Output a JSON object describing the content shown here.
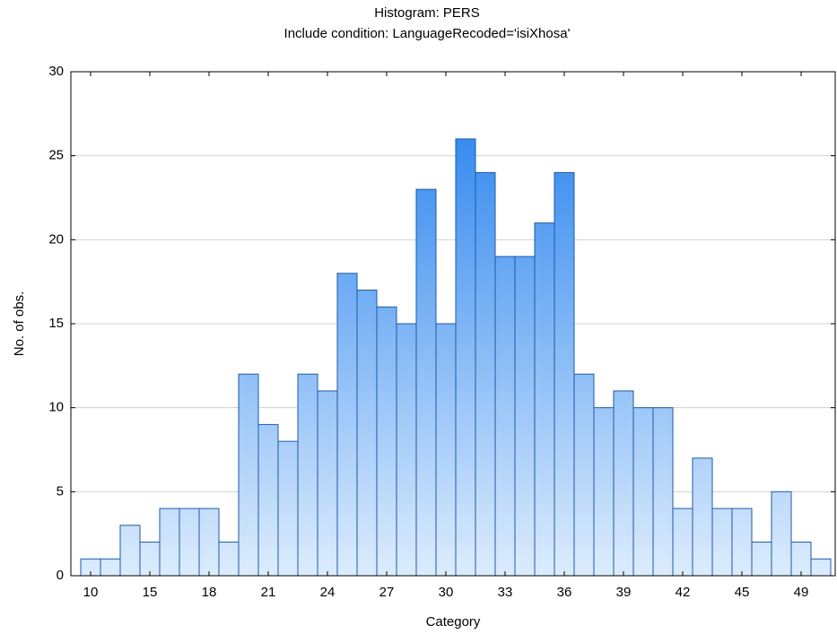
{
  "chart_data": {
    "type": "bar",
    "title": "Histogram: PERS",
    "subtitle": "Include condition: LanguageRecoded='isiXhosa'",
    "xlabel": "Category",
    "ylabel": "No. of obs.",
    "categories": [
      "10",
      null,
      null,
      "15",
      null,
      null,
      "18",
      null,
      null,
      "21",
      null,
      null,
      "24",
      null,
      null,
      "27",
      null,
      null,
      "30",
      null,
      null,
      "33",
      null,
      null,
      "36",
      null,
      null,
      "39",
      null,
      null,
      "42",
      null,
      null,
      "45",
      null,
      null,
      "49",
      null
    ],
    "values": [
      1,
      1,
      3,
      2,
      4,
      4,
      4,
      2,
      12,
      9,
      8,
      12,
      11,
      18,
      17,
      16,
      15,
      23,
      15,
      26,
      24,
      19,
      19,
      21,
      24,
      12,
      10,
      11,
      10,
      10,
      4,
      7,
      4,
      4,
      2,
      5,
      2,
      1
    ],
    "color": "#2a86f0",
    "ylim": [
      0,
      30
    ],
    "yticks": [
      0,
      5,
      10,
      15,
      20,
      25,
      30
    ],
    "grid": true
  }
}
